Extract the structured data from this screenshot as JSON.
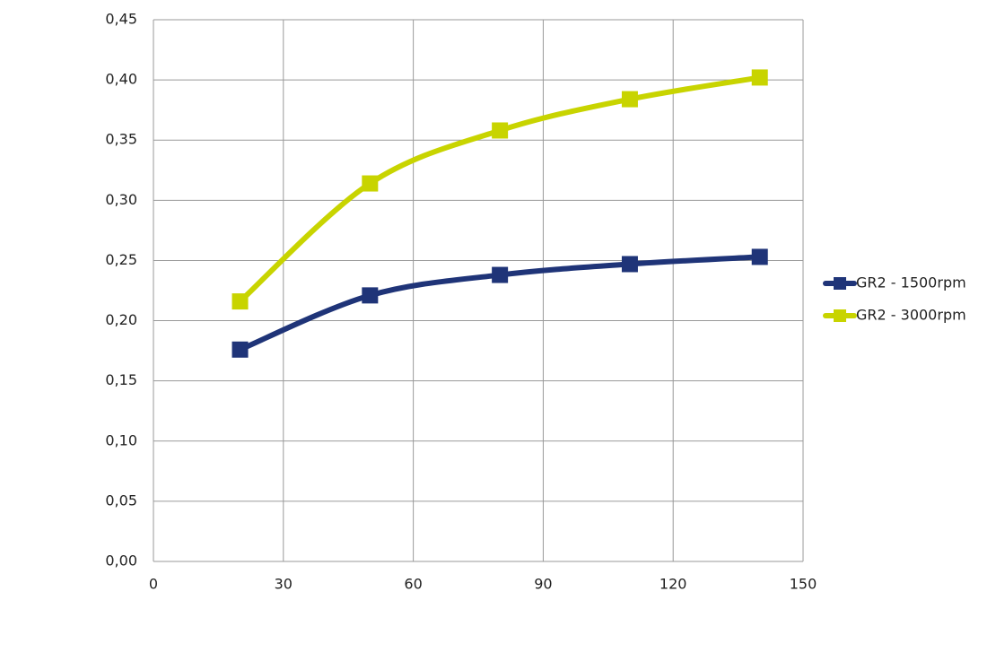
{
  "chart_data": {
    "type": "line",
    "x": [
      20,
      50,
      80,
      110,
      140
    ],
    "series": [
      {
        "name": "GR2 - 1500rpm",
        "color": "#1f3478",
        "values": [
          0.176,
          0.221,
          0.238,
          0.247,
          0.253
        ]
      },
      {
        "name": "GR2 - 3000rpm",
        "color": "#c8d400",
        "values": [
          0.216,
          0.314,
          0.358,
          0.384,
          0.402
        ]
      }
    ],
    "xlim": [
      0,
      150
    ],
    "xticks": [
      0,
      30,
      60,
      90,
      120,
      150
    ],
    "ylim": [
      0,
      0.45
    ],
    "yticks": [
      {
        "value": 0,
        "label": "0,00"
      },
      {
        "value": 0.05,
        "label": "0,05"
      },
      {
        "value": 0.1,
        "label": "0,10"
      },
      {
        "value": 0.15,
        "label": "0,15"
      },
      {
        "value": 0.2,
        "label": "0,20"
      },
      {
        "value": 0.25,
        "label": "0,25"
      },
      {
        "value": 0.3,
        "label": "0,30"
      },
      {
        "value": 0.35,
        "label": "0,35"
      },
      {
        "value": 0.4,
        "label": "0,40"
      },
      {
        "value": 0.45,
        "label": "0,45"
      }
    ],
    "grid": true,
    "legend": "right",
    "smooth": true
  }
}
